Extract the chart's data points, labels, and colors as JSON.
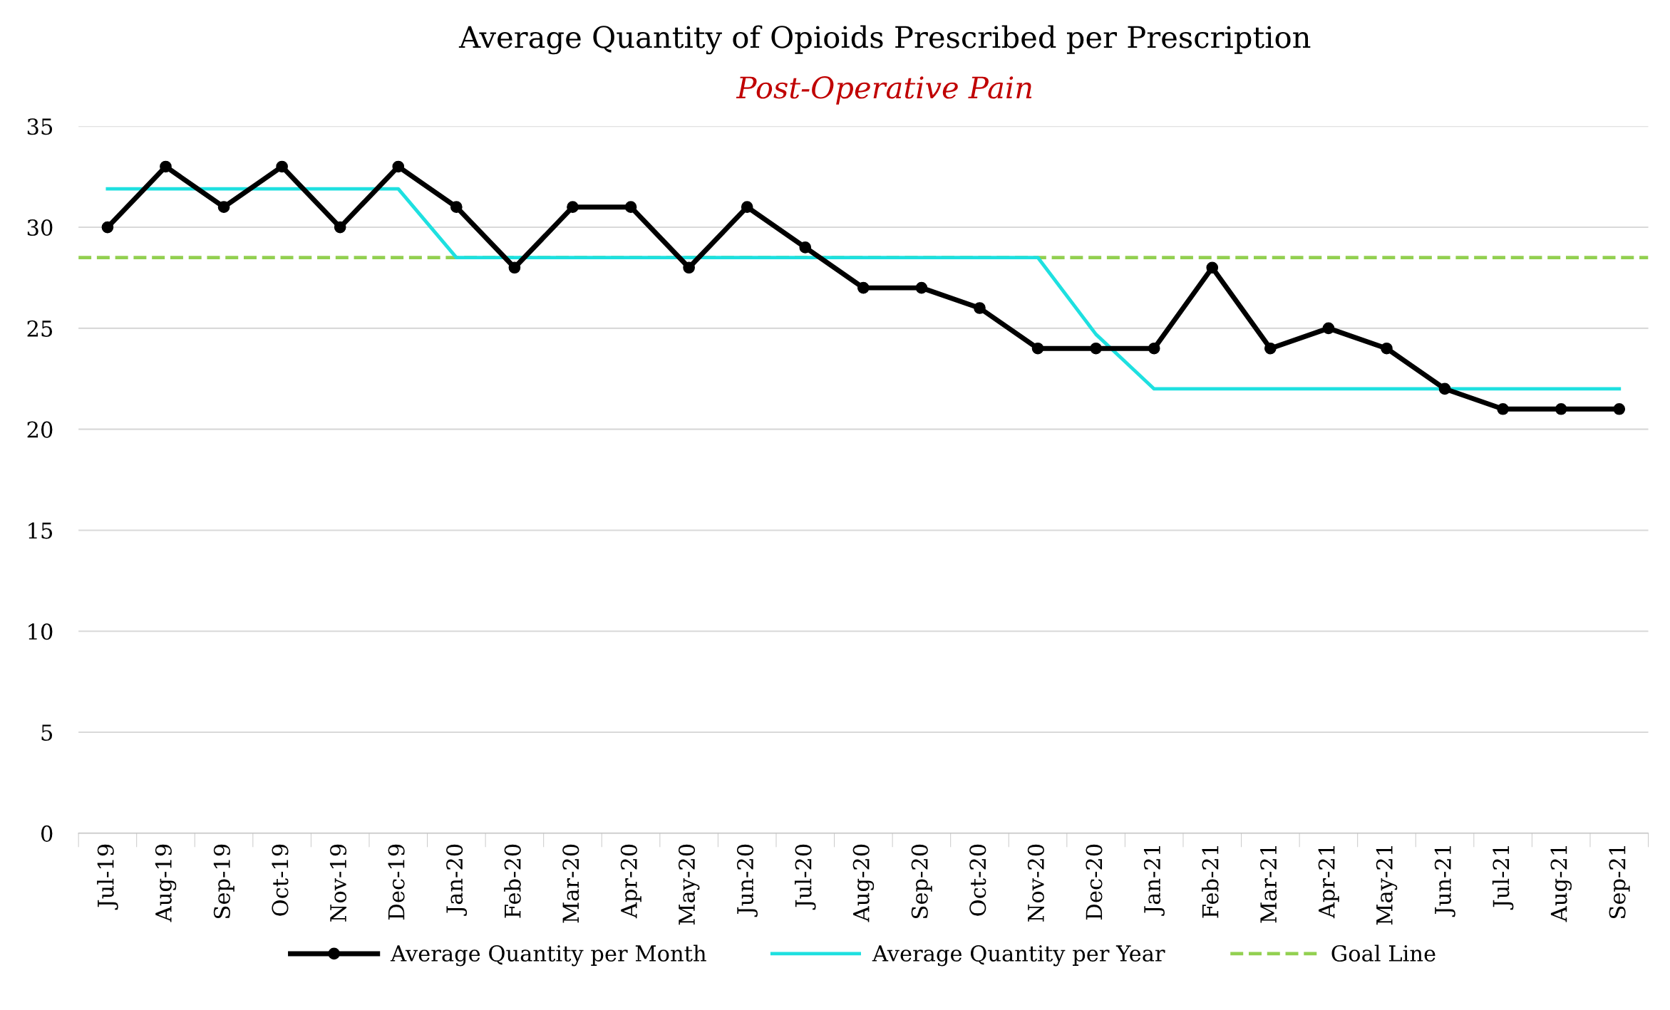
{
  "chart_data": {
    "type": "line",
    "title": "Average Quantity of Opioids Prescribed per Prescription",
    "subtitle": "Post-Operative Pain",
    "categories": [
      "Jul-19",
      "Aug-19",
      "Sep-19",
      "Oct-19",
      "Nov-19",
      "Dec-19",
      "Jan-20",
      "Feb-20",
      "Mar-20",
      "Apr-20",
      "May-20",
      "Jun-20",
      "Jul-20",
      "Aug-20",
      "Sep-20",
      "Oct-20",
      "Nov-20",
      "Dec-20",
      "Jan-21",
      "Feb-21",
      "Mar-21",
      "Apr-21",
      "May-21",
      "Jun-21",
      "Jul-21",
      "Aug-21",
      "Sep-21"
    ],
    "series": [
      {
        "name": "Average Quantity per Month",
        "color": "#000000",
        "marker": "circle",
        "values": [
          30,
          33,
          31,
          33,
          30,
          33,
          31,
          28,
          31,
          31,
          28,
          31,
          29,
          27,
          27,
          26,
          24,
          24,
          24,
          28,
          24,
          25,
          24,
          22,
          21,
          21,
          21
        ]
      },
      {
        "name": "Average Quantity per Year",
        "color": "#1ee0e0",
        "marker": "none",
        "values": [
          31.9,
          31.9,
          31.9,
          31.9,
          31.9,
          31.9,
          28.5,
          28.5,
          28.5,
          28.5,
          28.5,
          28.5,
          28.5,
          28.5,
          28.5,
          28.5,
          28.5,
          24.7,
          22,
          22,
          22,
          22,
          22,
          22,
          22,
          22,
          22
        ]
      }
    ],
    "ref_lines": [
      {
        "axis": "y",
        "value": 28.5,
        "label": "Goal Line",
        "color": "#92d050",
        "line_style": "dashed"
      }
    ],
    "ylim": [
      0,
      35
    ],
    "yticks": [
      0,
      5,
      10,
      15,
      20,
      25,
      30,
      35
    ],
    "grid": "y",
    "legend": "bottom"
  }
}
